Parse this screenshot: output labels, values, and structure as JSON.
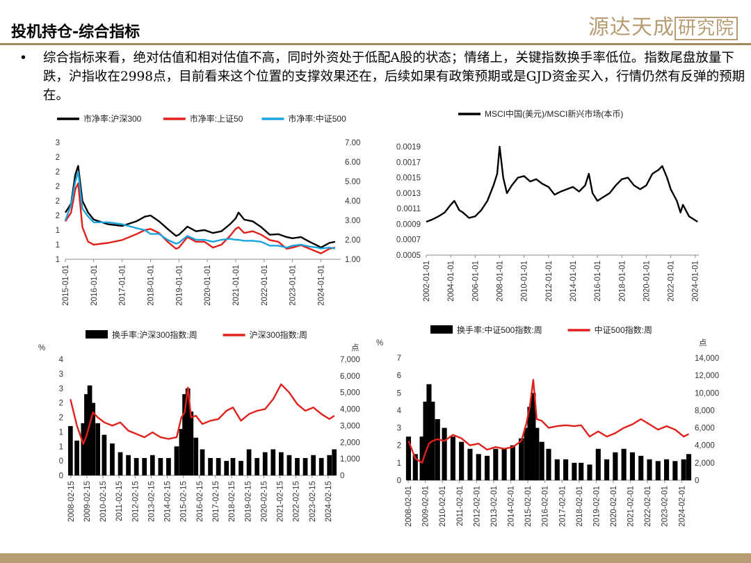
{
  "header": {
    "title": "投机持仓-综合指标",
    "logo_main": "源达天成",
    "logo_boxed": "研究院"
  },
  "bullet": {
    "symbol": "•",
    "text": "综合指标来看，绝对估值和相对估值不高，同时外资处于低配A股的状态；情绪上，关键指数换手率低位。指数尾盘放量下跌，沪指收在2998点，目前看来这个位置的支撑效果还在，后续如果有政策预期或是GJD资金买入，行情仍然有反弹的预期在。"
  },
  "colors": {
    "black": "#000000",
    "red": "#e0201b",
    "cyan": "#1aa3dc",
    "gold": "#b69c73"
  },
  "chart_data": [
    {
      "id": "pb",
      "type": "line",
      "series": [
        {
          "name": "市净率:沪深300",
          "color": "#000000",
          "axis": "left",
          "x": [
            2015.0,
            2015.2,
            2015.35,
            2015.45,
            2015.6,
            2015.8,
            2016.0,
            2016.5,
            2017.0,
            2017.5,
            2017.8,
            2018.0,
            2018.3,
            2018.6,
            2018.9,
            2019.0,
            2019.3,
            2019.6,
            2019.9,
            2020.2,
            2020.5,
            2020.8,
            2021.0,
            2021.1,
            2021.3,
            2021.6,
            2021.9,
            2022.2,
            2022.5,
            2022.8,
            2023.0,
            2023.3,
            2023.6,
            2023.9,
            2024.0,
            2024.3,
            2024.5
          ],
          "y": [
            1.8,
            1.95,
            2.45,
            2.6,
            2.0,
            1.8,
            1.68,
            1.6,
            1.57,
            1.65,
            1.73,
            1.75,
            1.65,
            1.52,
            1.4,
            1.42,
            1.56,
            1.48,
            1.5,
            1.45,
            1.48,
            1.6,
            1.7,
            1.8,
            1.68,
            1.65,
            1.55,
            1.42,
            1.43,
            1.38,
            1.36,
            1.38,
            1.3,
            1.23,
            1.2,
            1.28,
            1.3
          ]
        },
        {
          "name": "市净率:上证50",
          "color": "#e0201b",
          "axis": "left",
          "x": [
            2015.0,
            2015.2,
            2015.35,
            2015.45,
            2015.6,
            2015.8,
            2016.0,
            2016.5,
            2017.0,
            2017.5,
            2017.8,
            2018.0,
            2018.3,
            2018.6,
            2018.9,
            2019.0,
            2019.3,
            2019.6,
            2019.9,
            2020.2,
            2020.5,
            2020.8,
            2021.0,
            2021.1,
            2021.3,
            2021.6,
            2021.9,
            2022.2,
            2022.5,
            2022.8,
            2023.0,
            2023.3,
            2023.6,
            2023.9,
            2024.0,
            2024.3,
            2024.5
          ],
          "y": [
            1.65,
            1.8,
            2.2,
            2.3,
            1.55,
            1.3,
            1.25,
            1.28,
            1.33,
            1.43,
            1.5,
            1.52,
            1.45,
            1.3,
            1.18,
            1.2,
            1.38,
            1.3,
            1.3,
            1.2,
            1.25,
            1.4,
            1.52,
            1.55,
            1.45,
            1.48,
            1.42,
            1.33,
            1.3,
            1.18,
            1.2,
            1.24,
            1.18,
            1.12,
            1.1,
            1.18,
            1.2
          ]
        },
        {
          "name": "市净率:中证500",
          "color": "#1aa3dc",
          "axis": "right",
          "x": [
            2015.0,
            2015.2,
            2015.35,
            2015.45,
            2015.6,
            2015.8,
            2016.0,
            2016.5,
            2017.0,
            2017.5,
            2017.8,
            2018.0,
            2018.3,
            2018.6,
            2018.9,
            2019.0,
            2019.3,
            2019.6,
            2019.9,
            2020.2,
            2020.5,
            2020.8,
            2021.0,
            2021.1,
            2021.3,
            2021.6,
            2021.9,
            2022.2,
            2022.5,
            2022.8,
            2023.0,
            2023.3,
            2023.6,
            2023.9,
            2024.0,
            2024.3,
            2024.5
          ],
          "y": [
            3.0,
            3.8,
            5.0,
            5.5,
            3.6,
            3.2,
            2.9,
            2.9,
            2.8,
            2.6,
            2.5,
            2.3,
            2.3,
            2.0,
            1.8,
            1.85,
            2.2,
            2.0,
            2.0,
            1.9,
            2.0,
            2.05,
            2.0,
            2.0,
            1.95,
            1.95,
            1.9,
            1.7,
            1.7,
            1.6,
            1.7,
            1.75,
            1.65,
            1.6,
            1.55,
            1.6,
            1.55
          ]
        }
      ],
      "left_ticks": [
        "3",
        "2",
        "2",
        "2",
        "2",
        "2",
        "1",
        "1",
        "1"
      ],
      "right_ticks": [
        "7.00",
        "6.00",
        "5.00",
        "4.00",
        "3.00",
        "2.00",
        "1.00"
      ],
      "x_ticks": [
        "2015-01-01",
        "2016-01-01",
        "2017-01-01",
        "2018-01-01",
        "2019-01-01",
        "2020-01-01",
        "2021-01-01",
        "2022-01-01",
        "2023-01-01",
        "2024-01-01"
      ],
      "ylim_left": [
        1,
        3
      ],
      "ylim_right": [
        1,
        7
      ],
      "xlim": [
        2015.0,
        2024.7
      ],
      "legend": "top"
    },
    {
      "id": "msci",
      "type": "line",
      "series": [
        {
          "name": "MSCI中国(美元)/MSCI新兴市场(本币)",
          "color": "#000000",
          "x": [
            2002.0,
            2002.5,
            2003.0,
            2003.5,
            2004.0,
            2004.3,
            2004.7,
            2005.0,
            2005.5,
            2006.0,
            2006.5,
            2007.0,
            2007.5,
            2007.8,
            2008.0,
            2008.3,
            2008.6,
            2009.0,
            2009.5,
            2010.0,
            2010.5,
            2011.0,
            2011.5,
            2012.0,
            2012.5,
            2013.0,
            2013.5,
            2014.0,
            2014.5,
            2015.0,
            2015.3,
            2015.6,
            2016.0,
            2016.5,
            2017.0,
            2017.5,
            2018.0,
            2018.5,
            2019.0,
            2019.5,
            2020.0,
            2020.5,
            2021.0,
            2021.3,
            2021.7,
            2022.0,
            2022.5,
            2022.8,
            2023.0,
            2023.5,
            2024.0,
            2024.2
          ],
          "y": [
            0.00093,
            0.00096,
            0.001,
            0.00105,
            0.00115,
            0.0012,
            0.00108,
            0.00105,
            0.00098,
            0.001,
            0.00108,
            0.0012,
            0.0014,
            0.00155,
            0.0019,
            0.0015,
            0.0013,
            0.0014,
            0.0015,
            0.00152,
            0.00145,
            0.00148,
            0.00142,
            0.00138,
            0.00128,
            0.00132,
            0.00135,
            0.00138,
            0.00132,
            0.0014,
            0.00155,
            0.0013,
            0.0012,
            0.00125,
            0.0013,
            0.0014,
            0.00148,
            0.0015,
            0.0014,
            0.00135,
            0.0014,
            0.00155,
            0.0016,
            0.00165,
            0.0015,
            0.00135,
            0.0012,
            0.00105,
            0.00115,
            0.001,
            0.00095,
            0.00093
          ]
        }
      ],
      "y_ticks": [
        "0.0019",
        "0.0017",
        "0.0015",
        "0.0013",
        "0.0011",
        "0.0009",
        "0.0007",
        "0.0005"
      ],
      "x_ticks": [
        "2002-01-01",
        "2004-01-01",
        "2006-01-01",
        "2008-01-01",
        "2010-01-01",
        "2012-01-01",
        "2014-01-01",
        "2016-01-01",
        "2018-01-01",
        "2020-01-01",
        "2022-01-01",
        "2024-01-01"
      ],
      "ylim": [
        0.0005,
        0.0019
      ],
      "xlim": [
        2002.0,
        2024.3
      ],
      "legend": "top"
    },
    {
      "id": "hs300",
      "type": "bar+line",
      "left_unit": "%",
      "right_unit": "点",
      "series": [
        {
          "name": "换手率:沪深300指数:周",
          "color": "#000000",
          "kind": "bar",
          "axis": "left",
          "x": [
            2008.1,
            2008.5,
            2008.9,
            2009.1,
            2009.3,
            2009.5,
            2009.8,
            2010.2,
            2010.7,
            2011.2,
            2011.7,
            2012.2,
            2012.7,
            2013.2,
            2013.7,
            2014.2,
            2014.7,
            2015.0,
            2015.2,
            2015.4,
            2015.6,
            2015.9,
            2016.3,
            2016.8,
            2017.3,
            2017.8,
            2018.2,
            2018.7,
            2019.2,
            2019.7,
            2020.2,
            2020.7,
            2021.2,
            2021.7,
            2022.2,
            2022.7,
            2023.2,
            2023.7,
            2024.2,
            2024.5
          ],
          "y": [
            1.7,
            1.2,
            1.8,
            2.8,
            3.1,
            2.5,
            1.8,
            1.4,
            1.1,
            0.8,
            0.7,
            0.6,
            0.6,
            0.7,
            0.6,
            0.6,
            1.0,
            1.6,
            2.8,
            3.0,
            2.2,
            1.3,
            0.9,
            0.6,
            0.6,
            0.5,
            0.6,
            0.5,
            0.9,
            0.6,
            0.8,
            0.9,
            0.8,
            0.7,
            0.6,
            0.6,
            0.7,
            0.6,
            0.7,
            0.9
          ]
        },
        {
          "name": "沪深300指数:周",
          "color": "#e0201b",
          "kind": "line",
          "axis": "right",
          "x": [
            2008.1,
            2008.5,
            2008.9,
            2009.1,
            2009.3,
            2009.5,
            2009.8,
            2010.2,
            2010.7,
            2011.2,
            2011.7,
            2012.2,
            2012.7,
            2013.2,
            2013.7,
            2014.2,
            2014.7,
            2015.0,
            2015.2,
            2015.4,
            2015.6,
            2015.9,
            2016.3,
            2016.8,
            2017.3,
            2017.8,
            2018.2,
            2018.7,
            2019.2,
            2019.7,
            2020.2,
            2020.7,
            2021.2,
            2021.7,
            2022.2,
            2022.7,
            2023.2,
            2023.7,
            2024.2,
            2024.5
          ],
          "y": [
            4600,
            3000,
            1900,
            2400,
            3100,
            3800,
            3500,
            3200,
            3000,
            3200,
            2700,
            2500,
            2300,
            2600,
            2300,
            2200,
            2300,
            3500,
            3800,
            5300,
            3500,
            3600,
            3100,
            3300,
            3400,
            3900,
            4100,
            3300,
            3700,
            3900,
            4000,
            4600,
            5500,
            5000,
            4300,
            3900,
            4100,
            3700,
            3400,
            3600
          ]
        }
      ],
      "left_ticks": [
        "4",
        "3",
        "3",
        "2",
        "2",
        "1",
        "1",
        "0",
        "0"
      ],
      "right_ticks": [
        "7,000",
        "6,000",
        "5,000",
        "4,000",
        "3,000",
        "2,000",
        "1,000",
        "0"
      ],
      "x_ticks": [
        "2008-02-15",
        "2009-02-15",
        "2010-02-15",
        "2011-02-15",
        "2012-02-15",
        "2013-02-15",
        "2014-02-15",
        "2015-02-15",
        "2016-02-15",
        "2017-02-15",
        "2018-02-15",
        "2019-02-15",
        "2020-02-15",
        "2021-02-15",
        "2022-02-15",
        "2023-02-15",
        "2024-02-15"
      ],
      "ylim_left": [
        0,
        4
      ],
      "ylim_right": [
        0,
        7000
      ],
      "xlim": [
        2008.0,
        2024.6
      ],
      "legend": "top"
    },
    {
      "id": "zz500",
      "type": "bar+line",
      "left_unit": "%",
      "right_unit": "点",
      "series": [
        {
          "name": "换手率:中证500指数:周",
          "color": "#000000",
          "kind": "bar",
          "axis": "left",
          "x": [
            2008.1,
            2008.5,
            2008.9,
            2009.1,
            2009.3,
            2009.5,
            2009.8,
            2010.2,
            2010.7,
            2011.2,
            2011.7,
            2012.2,
            2012.7,
            2013.2,
            2013.7,
            2014.2,
            2014.7,
            2015.0,
            2015.2,
            2015.4,
            2015.6,
            2015.9,
            2016.3,
            2016.8,
            2017.3,
            2017.8,
            2018.2,
            2018.7,
            2019.2,
            2019.7,
            2020.2,
            2020.7,
            2021.2,
            2021.7,
            2022.2,
            2022.7,
            2023.2,
            2023.7,
            2024.2,
            2024.5
          ],
          "y": [
            2.5,
            1.5,
            2.5,
            4.5,
            5.5,
            4.5,
            3.5,
            3.0,
            2.5,
            2.2,
            1.8,
            1.5,
            1.4,
            1.8,
            1.8,
            2.0,
            2.4,
            3.0,
            4.2,
            5.0,
            3.0,
            2.2,
            1.8,
            1.2,
            1.2,
            1.0,
            1.0,
            0.9,
            1.8,
            1.2,
            1.6,
            1.8,
            1.6,
            1.4,
            1.2,
            1.1,
            1.2,
            1.1,
            1.2,
            1.5
          ]
        },
        {
          "name": "中证500指数:周",
          "color": "#e0201b",
          "kind": "line",
          "axis": "right",
          "x": [
            2008.1,
            2008.5,
            2008.9,
            2009.1,
            2009.3,
            2009.5,
            2009.8,
            2010.2,
            2010.7,
            2011.2,
            2011.7,
            2012.2,
            2012.7,
            2013.2,
            2013.7,
            2014.2,
            2014.7,
            2015.0,
            2015.2,
            2015.4,
            2015.6,
            2015.9,
            2016.3,
            2016.8,
            2017.3,
            2017.8,
            2018.2,
            2018.7,
            2019.2,
            2019.7,
            2020.2,
            2020.7,
            2021.2,
            2021.7,
            2022.2,
            2022.7,
            2023.2,
            2023.7,
            2024.2,
            2024.5
          ],
          "y": [
            4500,
            2500,
            2000,
            3200,
            4200,
            4500,
            4700,
            4500,
            5200,
            4800,
            4000,
            4200,
            3500,
            3800,
            3600,
            3800,
            4500,
            6500,
            8500,
            11500,
            7000,
            6800,
            6000,
            6200,
            6300,
            6200,
            6300,
            5000,
            5600,
            5000,
            5400,
            6000,
            6400,
            7000,
            6400,
            5800,
            6200,
            5800,
            5000,
            5300
          ]
        }
      ],
      "left_ticks": [
        "7",
        "6",
        "5",
        "4",
        "3",
        "2",
        "1",
        "0"
      ],
      "right_ticks": [
        "14,000",
        "12,000",
        "10,000",
        "8,000",
        "6,000",
        "4,000",
        "2,000",
        "0"
      ],
      "x_ticks": [
        "2008-02-01",
        "2009-02-01",
        "2010-02-01",
        "2011-02-01",
        "2012-02-01",
        "2013-02-01",
        "2014-02-01",
        "2015-02-01",
        "2016-02-01",
        "2017-02-01",
        "2018-02-01",
        "2019-02-01",
        "2020-02-01",
        "2021-02-01",
        "2022-02-01",
        "2023-02-01",
        "2024-02-01"
      ],
      "ylim_left": [
        0,
        7
      ],
      "ylim_right": [
        0,
        14000
      ],
      "xlim": [
        2008.0,
        2024.6
      ],
      "legend": "top"
    }
  ]
}
